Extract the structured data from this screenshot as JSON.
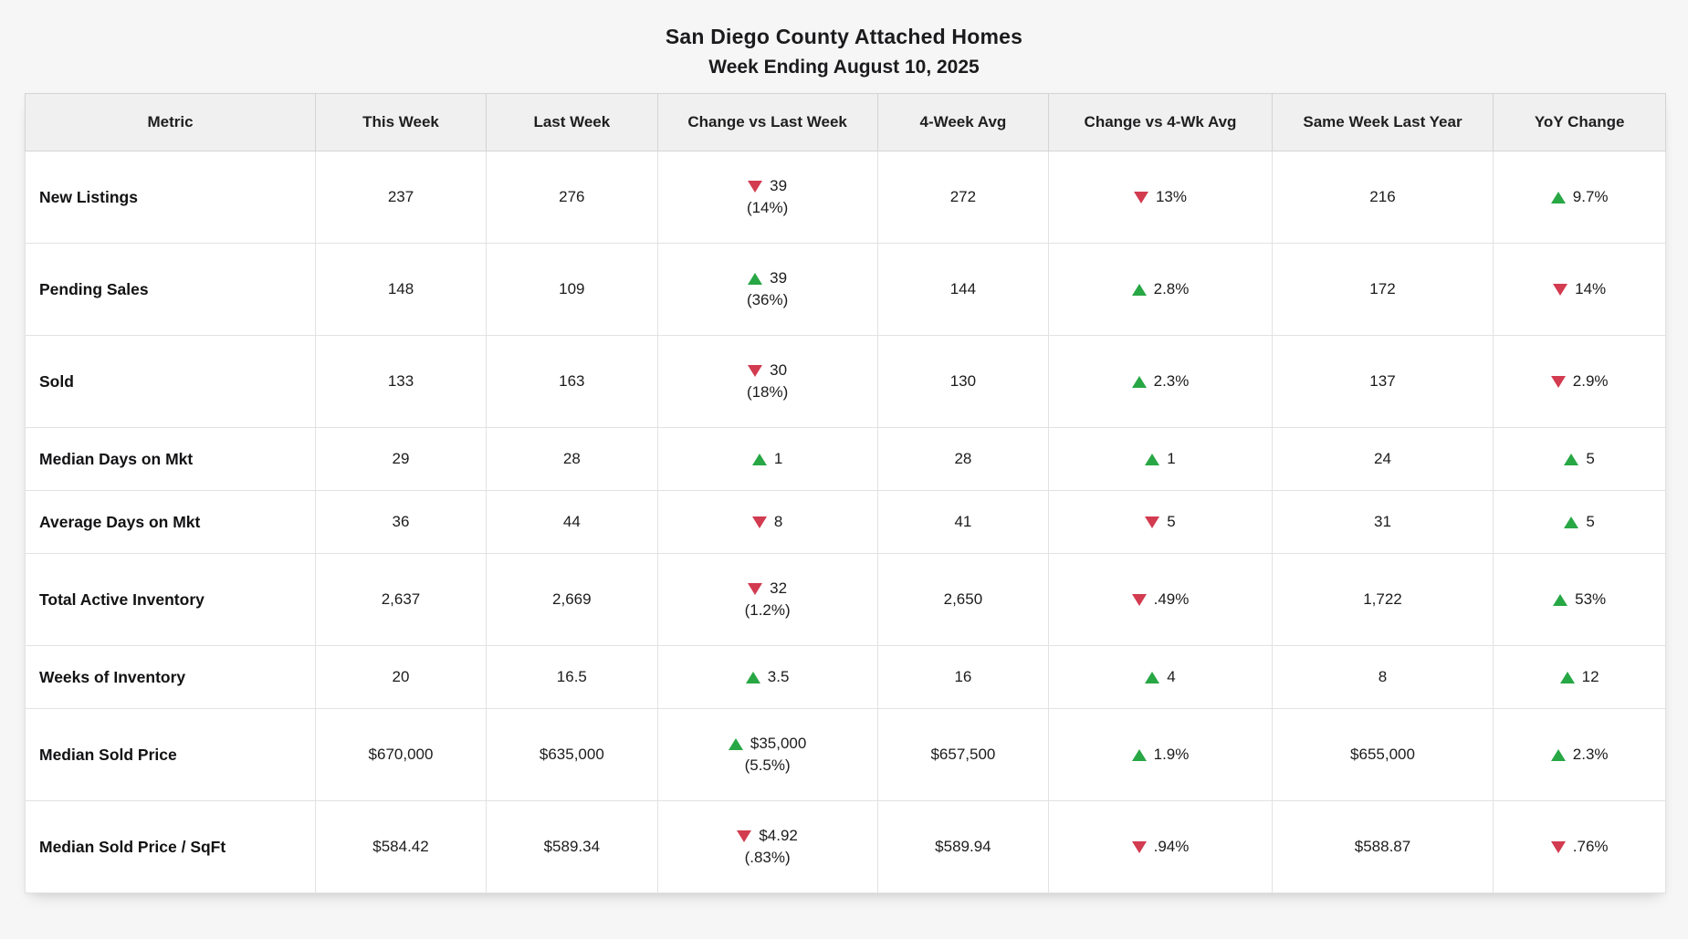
{
  "title": "San Diego County Attached Homes",
  "subtitle": "Week Ending August 10, 2025",
  "colors": {
    "up_triangle": "#28a745",
    "down_triangle": "#d23b50"
  },
  "chart_data": {
    "type": "table",
    "title": "San Diego County Attached Homes",
    "subtitle": "Week Ending August 10, 2025",
    "columns": [
      "Metric",
      "This Week",
      "Last Week",
      "Change vs Last Week",
      "4-Week Avg",
      "Change vs 4-Wk Avg",
      "Same Week Last Year",
      "YoY Change"
    ],
    "rows": [
      {
        "metric": "New Listings",
        "tall": true,
        "cells": [
          {
            "text": "237"
          },
          {
            "text": "276"
          },
          {
            "dir": "down",
            "text": "39",
            "sub": "(14%)"
          },
          {
            "text": "272"
          },
          {
            "dir": "down",
            "text": "13%"
          },
          {
            "text": "216"
          },
          {
            "dir": "up",
            "text": "9.7%"
          }
        ]
      },
      {
        "metric": "Pending Sales",
        "tall": true,
        "cells": [
          {
            "text": "148"
          },
          {
            "text": "109"
          },
          {
            "dir": "up",
            "text": "39",
            "sub": "(36%)"
          },
          {
            "text": "144"
          },
          {
            "dir": "up",
            "text": "2.8%"
          },
          {
            "text": "172"
          },
          {
            "dir": "down",
            "text": "14%"
          }
        ]
      },
      {
        "metric": "Sold",
        "tall": true,
        "cells": [
          {
            "text": "133"
          },
          {
            "text": "163"
          },
          {
            "dir": "down",
            "text": "30",
            "sub": "(18%)"
          },
          {
            "text": "130"
          },
          {
            "dir": "up",
            "text": "2.3%"
          },
          {
            "text": "137"
          },
          {
            "dir": "down",
            "text": "2.9%"
          }
        ]
      },
      {
        "metric": "Median Days on Mkt",
        "tall": false,
        "cells": [
          {
            "text": "29"
          },
          {
            "text": "28"
          },
          {
            "dir": "up",
            "text": "1"
          },
          {
            "text": "28"
          },
          {
            "dir": "up",
            "text": "1"
          },
          {
            "text": "24"
          },
          {
            "dir": "up",
            "text": "5"
          }
        ]
      },
      {
        "metric": "Average Days on Mkt",
        "tall": false,
        "cells": [
          {
            "text": "36"
          },
          {
            "text": "44"
          },
          {
            "dir": "down",
            "text": "8"
          },
          {
            "text": "41"
          },
          {
            "dir": "down",
            "text": "5"
          },
          {
            "text": "31"
          },
          {
            "dir": "up",
            "text": "5"
          }
        ]
      },
      {
        "metric": "Total Active Inventory",
        "tall": true,
        "cells": [
          {
            "text": "2,637"
          },
          {
            "text": "2,669"
          },
          {
            "dir": "down",
            "text": "32",
            "sub": "(1.2%)"
          },
          {
            "text": "2,650"
          },
          {
            "dir": "down",
            "text": ".49%"
          },
          {
            "text": "1,722"
          },
          {
            "dir": "up",
            "text": "53%"
          }
        ]
      },
      {
        "metric": "Weeks of Inventory",
        "tall": false,
        "cells": [
          {
            "text": "20"
          },
          {
            "text": "16.5"
          },
          {
            "dir": "up",
            "text": "3.5"
          },
          {
            "text": "16"
          },
          {
            "dir": "up",
            "text": "4"
          },
          {
            "text": "8"
          },
          {
            "dir": "up",
            "text": "12"
          }
        ]
      },
      {
        "metric": "Median Sold Price",
        "tall": true,
        "cells": [
          {
            "text": "$670,000"
          },
          {
            "text": "$635,000"
          },
          {
            "dir": "up",
            "text": "$35,000",
            "sub": "(5.5%)"
          },
          {
            "text": "$657,500"
          },
          {
            "dir": "up",
            "text": "1.9%"
          },
          {
            "text": "$655,000"
          },
          {
            "dir": "up",
            "text": "2.3%"
          }
        ]
      },
      {
        "metric": "Median Sold Price / SqFt",
        "tall": true,
        "cells": [
          {
            "text": "$584.42"
          },
          {
            "text": "$589.34"
          },
          {
            "dir": "down",
            "text": "$4.92",
            "sub": "(.83%)"
          },
          {
            "text": "$589.94"
          },
          {
            "dir": "down",
            "text": ".94%"
          },
          {
            "text": "$588.87"
          },
          {
            "dir": "down",
            "text": ".76%"
          }
        ]
      }
    ],
    "layout": {
      "column_width_percents": [
        17.7,
        10.4,
        10.45,
        13.4,
        10.45,
        13.6,
        13.5,
        10.5
      ]
    }
  }
}
